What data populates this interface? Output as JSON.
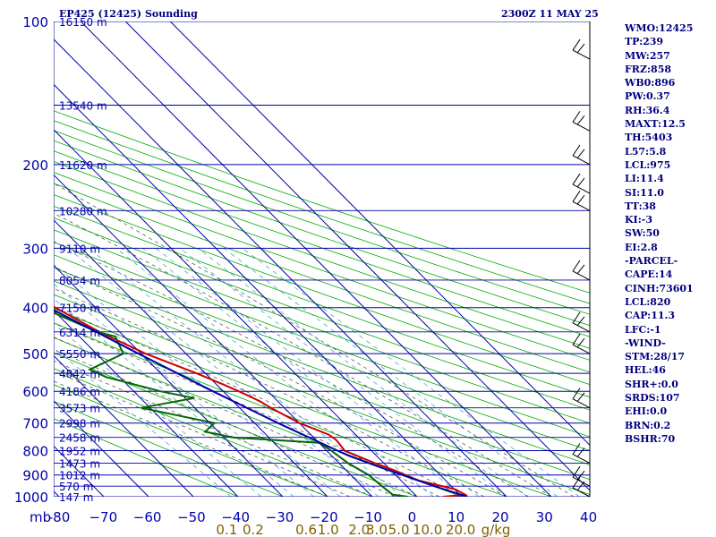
{
  "header": {
    "station": "EP425 (12425) Sounding",
    "time": "2300Z 11 MAY 25"
  },
  "indices": [
    "WMO:12425",
    "TP:239",
    "MW:257",
    "FRZ:858",
    "WB0:896",
    "PW:0.37",
    "RH:36.4",
    "MAXT:12.5",
    "TH:5403",
    "L57:5.8",
    "LCL:975",
    "LI:11.4",
    "SI:11.0",
    "TT:38",
    "KI:-3",
    "SW:50",
    "EI:2.8",
    "-PARCEL-",
    "CAPE:14",
    "CINH:73601",
    "LCL:820",
    "CAP:11.3",
    "LFC:-1",
    "-WIND-",
    "STM:28/17",
    "HEL:46",
    "SHR+:0.0",
    "SRDS:107",
    "EHI:0.0",
    "BRN:0.2",
    "BSHR:70"
  ],
  "chart_data": {
    "type": "skew-t",
    "y_unit_label": "mb",
    "pressure_levels": [
      100,
      200,
      300,
      400,
      500,
      600,
      700,
      800,
      900,
      1000
    ],
    "temperature_ticks": [
      -80,
      -70,
      -60,
      -50,
      -40,
      -30,
      -20,
      -10,
      0,
      10,
      20,
      30,
      40
    ],
    "temperature_tick_labels": [
      "-80",
      "−70",
      "−60",
      "−50",
      "−40",
      "−30",
      "−20",
      "−10",
      "0",
      "10",
      "20",
      "30",
      "40"
    ],
    "mixing_ratio_labels": [
      {
        "label": "0.1",
        "t": -42
      },
      {
        "label": "0.2",
        "t": -36
      },
      {
        "label": "0.6",
        "t": -24
      },
      {
        "label": "1.0",
        "t": -19
      },
      {
        "label": "2.0",
        "t": -12
      },
      {
        "label": "3.0",
        "t": -8
      },
      {
        "label": "5.0",
        "t": -3
      },
      {
        "label": "10.0",
        "t": 3.5
      },
      {
        "label": "20.0",
        "t": 11
      },
      {
        "label": "g/kg",
        "t": 19
      }
    ],
    "height_labels": [
      {
        "p": 100,
        "label": "16150 m"
      },
      {
        "p": 150,
        "label": "13540 m"
      },
      {
        "p": 200,
        "label": "11620 m"
      },
      {
        "p": 250,
        "label": "10280 m"
      },
      {
        "p": 300,
        "label": "9110 m"
      },
      {
        "p": 350,
        "label": "8054 m"
      },
      {
        "p": 400,
        "label": "7150 m"
      },
      {
        "p": 450,
        "label": "6314 m"
      },
      {
        "p": 500,
        "label": "5550 m"
      },
      {
        "p": 550,
        "label": "4842 m"
      },
      {
        "p": 600,
        "label": "4186 m"
      },
      {
        "p": 650,
        "label": "3573 m"
      },
      {
        "p": 700,
        "label": "2998 m"
      },
      {
        "p": 750,
        "label": "2458 m"
      },
      {
        "p": 800,
        "label": "1952 m"
      },
      {
        "p": 850,
        "label": "1473 m"
      },
      {
        "p": 900,
        "label": "1012 m"
      },
      {
        "p": 950,
        "label": "570 m"
      },
      {
        "p": 1000,
        "label": "147 m"
      }
    ],
    "series": [
      {
        "kind": "temperature",
        "color": "#cc0000",
        "points": [
          [
            1000,
            5.8
          ],
          [
            990,
            11.2
          ],
          [
            965,
            10.2
          ],
          [
            925,
            4.0
          ],
          [
            880,
            0.8
          ],
          [
            850,
            -2.0
          ],
          [
            800,
            -6.0
          ],
          [
            760,
            -5.5
          ],
          [
            740,
            -6.0
          ],
          [
            700,
            -10.0
          ],
          [
            650,
            -13.0
          ],
          [
            630,
            -14.0
          ],
          [
            600,
            -16.5
          ],
          [
            580,
            -18.5
          ],
          [
            550,
            -22.0
          ],
          [
            500,
            -29.0
          ],
          [
            450,
            -34.5
          ],
          [
            400,
            -39.0
          ],
          [
            350,
            -44.5
          ],
          [
            300,
            -52.0
          ],
          [
            270,
            -55.0
          ],
          [
            250,
            -56.5
          ],
          [
            235,
            -57.0
          ],
          [
            220,
            -54.0
          ],
          [
            200,
            -52.0
          ],
          [
            180,
            -53.0
          ],
          [
            160,
            -53.0
          ],
          [
            140,
            -54.0
          ],
          [
            130,
            -55.0
          ],
          [
            120,
            -56.0
          ],
          [
            110,
            -56.5
          ],
          [
            100,
            -57.0
          ]
        ]
      },
      {
        "kind": "dewpoint",
        "color": "#006600",
        "points": [
          [
            1000,
            -2.0
          ],
          [
            990,
            -5.0
          ],
          [
            950,
            -5.5
          ],
          [
            900,
            -6.0
          ],
          [
            850,
            -8.0
          ],
          [
            800,
            -9.0
          ],
          [
            770,
            -10.0
          ],
          [
            750,
            -28.0
          ],
          [
            730,
            -33.0
          ],
          [
            700,
            -29.0
          ],
          [
            650,
            -42.0
          ],
          [
            620,
            -28.0
          ],
          [
            600,
            -34.0
          ],
          [
            560,
            -43.0
          ],
          [
            540,
            -45.0
          ],
          [
            500,
            -34.0
          ],
          [
            460,
            -32.0
          ],
          [
            450,
            -35.0
          ],
          [
            400,
            -42.0
          ],
          [
            350,
            -50.0
          ],
          [
            300,
            -58.0
          ],
          [
            280,
            -60.0
          ],
          [
            250,
            -65.0
          ],
          [
            220,
            -68.0
          ],
          [
            200,
            -72.0
          ],
          [
            180,
            -78.0
          ],
          [
            170,
            -80.0
          ]
        ]
      },
      {
        "kind": "parcel",
        "color": "#0000aa",
        "points": [
          [
            1000,
            11.2
          ],
          [
            950,
            6.2
          ],
          [
            900,
            1.5
          ],
          [
            860,
            -2.4
          ],
          [
            820,
            -6.2
          ],
          [
            800,
            -7.6
          ],
          [
            700,
            -14.8
          ],
          [
            600,
            -22.3
          ],
          [
            500,
            -30.6
          ],
          [
            400,
            -40.4
          ],
          [
            300,
            -52.2
          ],
          [
            200,
            -68.8
          ]
        ]
      }
    ],
    "wind_barbs": [
      {
        "p": 120
      },
      {
        "p": 170
      },
      {
        "p": 200
      },
      {
        "p": 230
      },
      {
        "p": 250
      },
      {
        "p": 350
      },
      {
        "p": 450
      },
      {
        "p": 500
      },
      {
        "p": 650
      },
      {
        "p": 850
      },
      {
        "p": 950
      },
      {
        "p": 1000
      }
    ],
    "grid": true
  }
}
